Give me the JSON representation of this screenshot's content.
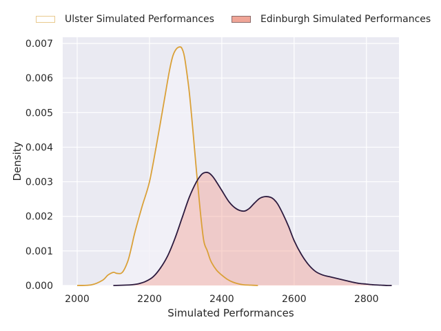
{
  "chart_data": {
    "type": "area",
    "xlabel": "Simulated Performances",
    "ylabel": "Density",
    "xlim": [
      1960,
      2890
    ],
    "ylim": [
      0,
      0.00718
    ],
    "x_ticks": [
      2000,
      2200,
      2400,
      2600,
      2800
    ],
    "y_ticks": [
      0.0,
      0.001,
      0.002,
      0.003,
      0.004,
      0.005,
      0.006,
      0.007
    ],
    "y_tick_labels": [
      "0.000",
      "0.001",
      "0.002",
      "0.003",
      "0.004",
      "0.005",
      "0.006",
      "0.007"
    ],
    "grid": true,
    "legend_position": "top",
    "series": [
      {
        "name": "Ulster Simulated Performances",
        "line_color": "#daa037",
        "fill_color": "#f3f1f8",
        "x": [
          2000,
          2040,
          2070,
          2085,
          2100,
          2110,
          2125,
          2140,
          2150,
          2160,
          2180,
          2200,
          2220,
          2240,
          2255,
          2265,
          2275,
          2285,
          2290,
          2295,
          2300,
          2310,
          2320,
          2330,
          2340,
          2350,
          2360,
          2370,
          2385,
          2400,
          2415,
          2430,
          2445,
          2460,
          2480,
          2500
        ],
        "y": [
          0.0,
          2e-05,
          0.00015,
          0.0003,
          0.00038,
          0.00035,
          0.00038,
          0.0007,
          0.0011,
          0.00155,
          0.0023,
          0.003,
          0.0041,
          0.0053,
          0.0062,
          0.00665,
          0.00685,
          0.0069,
          0.00685,
          0.0067,
          0.0064,
          0.0056,
          0.0045,
          0.0033,
          0.0022,
          0.0013,
          0.001,
          0.0007,
          0.00045,
          0.0003,
          0.00018,
          0.0001,
          5e-05,
          2e-05,
          1e-05,
          0.0
        ]
      },
      {
        "name": "Edinburgh Simulated Performances",
        "line_color": "#2c1a3e",
        "fill_color": "#f4a396",
        "x": [
          2100,
          2130,
          2150,
          2170,
          2190,
          2210,
          2230,
          2250,
          2270,
          2290,
          2310,
          2330,
          2345,
          2355,
          2365,
          2375,
          2385,
          2400,
          2420,
          2440,
          2460,
          2475,
          2490,
          2505,
          2520,
          2535,
          2545,
          2555,
          2570,
          2585,
          2600,
          2620,
          2640,
          2660,
          2680,
          2700,
          2720,
          2740,
          2760,
          2780,
          2800,
          2820,
          2840,
          2860,
          2870
        ],
        "y": [
          0.0,
          1e-05,
          2e-05,
          5e-05,
          0.00012,
          0.00025,
          0.0005,
          0.00085,
          0.00135,
          0.00195,
          0.00255,
          0.003,
          0.00322,
          0.00327,
          0.00325,
          0.00315,
          0.003,
          0.00275,
          0.00242,
          0.00222,
          0.00215,
          0.00222,
          0.00238,
          0.00252,
          0.00257,
          0.00255,
          0.00248,
          0.00235,
          0.00205,
          0.0017,
          0.0013,
          0.0009,
          0.0006,
          0.0004,
          0.0003,
          0.00025,
          0.0002,
          0.00015,
          0.0001,
          6e-05,
          4e-05,
          2e-05,
          1e-05,
          0.0,
          0.0
        ]
      }
    ]
  }
}
